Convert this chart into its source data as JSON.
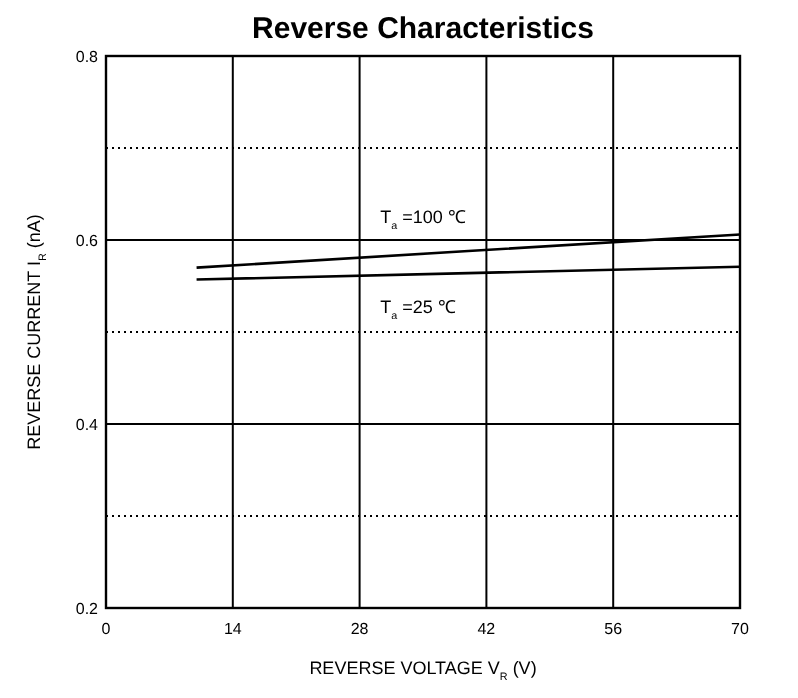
{
  "chart_data": {
    "type": "line",
    "title": "Reverse     Characteristics",
    "xlabel": "REVERSE VOLTAGE    V$_{R}$     (V)",
    "ylabel": "REVERSE CURRENT   I$_{R}$     (nA)",
    "xlim": [
      0,
      70
    ],
    "xticks": [
      0,
      14,
      28,
      42,
      56,
      70
    ],
    "ylim": [
      0.2,
      0.8
    ],
    "yticks": [
      0.2,
      {
        "value": 0.3,
        "label": null
      },
      0.4,
      {
        "value": 0.5,
        "label": null
      },
      0.6,
      {
        "value": 0.7,
        "label": null
      },
      0.8
    ],
    "grid": true,
    "marker": "none",
    "line_style": "solid",
    "series": [
      {
        "name": "T$_{a}$=100 ℃",
        "color": "#000000",
        "x": [
          10,
          40,
          70
        ],
        "values": [
          0.57,
          0.588,
          0.606
        ]
      },
      {
        "name": "T$_{a}$=25 ℃",
        "color": "#000000",
        "x": [
          10,
          40,
          70
        ],
        "values": [
          0.557,
          0.564,
          0.571
        ]
      }
    ]
  }
}
